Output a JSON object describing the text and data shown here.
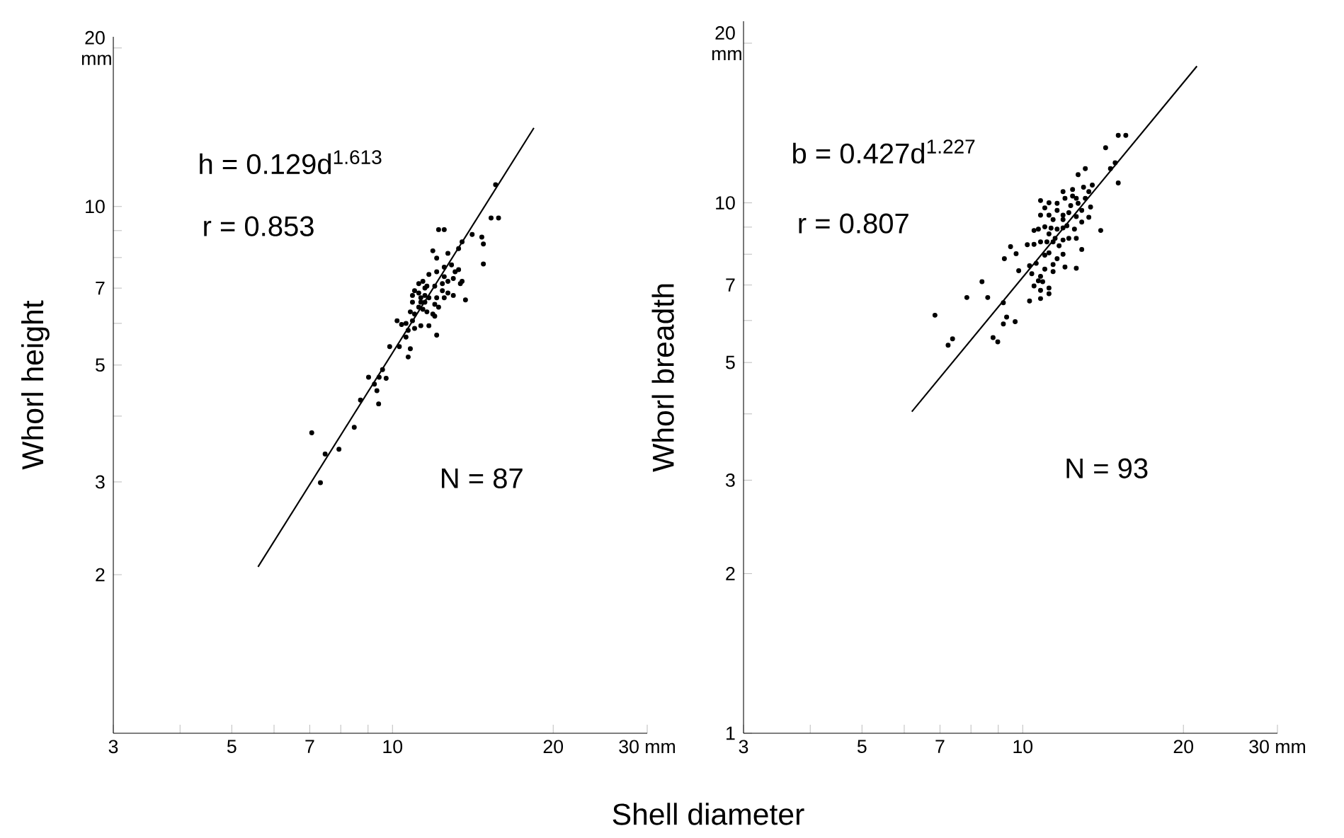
{
  "chart_data": [
    {
      "type": "scatter",
      "xlabel": "Shell diameter",
      "ylabel": "Whorl height",
      "log": "xy",
      "xlim": [
        3,
        30
      ],
      "ylim": [
        1,
        21
      ],
      "xticks": [
        3,
        {
          "value": 4,
          "label": null
        },
        5,
        {
          "value": 6,
          "label": null
        },
        7,
        {
          "value": 8,
          "label": null
        },
        {
          "value": 9,
          "label": null
        },
        10,
        20,
        {
          "value": 30,
          "label": "30 mm"
        }
      ],
      "yticks": [
        2,
        3,
        {
          "value": 4,
          "label": null
        },
        5,
        {
          "value": 6,
          "label": null
        },
        7,
        {
          "value": 8,
          "label": null
        },
        {
          "value": 9,
          "label": null
        },
        10,
        {
          "value": 20,
          "label": "20 mm"
        }
      ],
      "annotations": [
        "h = 0.129d$^{1.613}$",
        "r = 0.853",
        "N = 87"
      ],
      "series": [
        {
          "color": "#000000",
          "marker": "circle",
          "x": [
            7.06,
            7.48,
            7.94,
            8.48,
            8.71,
            7.33,
            9.02,
            9.44,
            9.25,
            9.73,
            9.35,
            9.42,
            9.58,
            9.88,
            10.3,
            10.7,
            10.8,
            10.6,
            10.2,
            10.4,
            10.6,
            10.9,
            11.3,
            12.1,
            10.8,
            11.0,
            11.2,
            11.4,
            10.9,
            11.2,
            11.5,
            11.7,
            12.0,
            12.5,
            12.7,
            13.0,
            13.7,
            13.4,
            13.1,
            12.7,
            12.4,
            12.0,
            11.6,
            11.4,
            11.2,
            11.0,
            11.7,
            12.1,
            12.5,
            12.9,
            13.3,
            12.1,
            11.9,
            12.7,
            13.3,
            13.5,
            14.1,
            14.7,
            14.8,
            14.8,
            13.5,
            12.2,
            12.5,
            15.3,
            15.8,
            15.6,
            10.9,
            11.3,
            11.5,
            11.6,
            11.9,
            12.0,
            12.4,
            13.0,
            12.5,
            11.5,
            11.3,
            10.7,
            11.7,
            11.0,
            12.1,
            12.2
          ],
          "values": [
            3.72,
            3.39,
            3.46,
            3.81,
            4.29,
            2.99,
            4.74,
            4.74,
            4.6,
            4.72,
            4.47,
            4.22,
            4.9,
            5.42,
            5.42,
            5.18,
            5.37,
            5.65,
            6.07,
            5.97,
            6.0,
            6.07,
            5.94,
            5.7,
            6.31,
            6.25,
            6.44,
            6.38,
            6.78,
            6.85,
            6.78,
            6.71,
            6.52,
            6.71,
            6.85,
            6.78,
            6.65,
            7.14,
            7.52,
            7.21,
            7.14,
            7.06,
            7.06,
            7.21,
            7.14,
            6.92,
            7.43,
            7.52,
            7.67,
            7.75,
            7.59,
            7.98,
            8.24,
            8.15,
            8.32,
            8.57,
            8.85,
            8.75,
            8.49,
            7.78,
            7.21,
            9.04,
            9.04,
            9.51,
            9.51,
            11.0,
            6.58,
            6.58,
            6.58,
            6.31,
            6.25,
            6.19,
            6.92,
            7.3,
            7.36,
            7.0,
            6.71,
            5.82,
            5.94,
            5.87,
            6.71,
            6.44
          ]
        },
        {
          "type": "line",
          "marker": "none",
          "color": "#000000",
          "x": [
            5.6,
            18.4
          ],
          "values": [
            2.07,
            14.1
          ]
        }
      ]
    },
    {
      "type": "scatter",
      "ylabel": "Whorl breadth",
      "log": "xy",
      "xlim": [
        3,
        30
      ],
      "ylim": [
        1,
        22
      ],
      "xticks": [
        3,
        {
          "value": 4,
          "label": null
        },
        5,
        {
          "value": 6,
          "label": null
        },
        7,
        {
          "value": 8,
          "label": null
        },
        {
          "value": 9,
          "label": null
        },
        10,
        20,
        {
          "value": 30,
          "label": "30 mm"
        }
      ],
      "yticks": [
        1,
        2,
        3,
        {
          "value": 4,
          "label": null
        },
        5,
        {
          "value": 6,
          "label": null
        },
        7,
        {
          "value": 8,
          "label": null
        },
        {
          "value": 9,
          "label": null
        },
        10,
        {
          "value": 20,
          "label": "20 mm"
        }
      ],
      "annotations": [
        "b = 0.427d$^{1.227}$",
        "r = 0.807",
        "N = 93"
      ],
      "series": [
        {
          "color": "#000000",
          "marker": "circle",
          "x": [
            6.85,
            7.25,
            7.39,
            7.86,
            8.39,
            8.6,
            8.8,
            8.98,
            9.2,
            9.2,
            9.33,
            9.68,
            9.24,
            9.49,
            9.72,
            9.83,
            10.3,
            10.3,
            10.5,
            10.8,
            10.8,
            11.2,
            11.2,
            10.9,
            10.8,
            11.0,
            11.4,
            11.6,
            11.9,
            12.0,
            12.6,
            12.9,
            12.2,
            11.9,
            11.4,
            11.1,
            10.8,
            10.5,
            10.2,
            10.5,
            10.7,
            11.0,
            11.3,
            11.6,
            11.9,
            12.5,
            12.9,
            13.3,
            14.0,
            11.2,
            10.8,
            11.2,
            10.8,
            11.6,
            11.9,
            12.2,
            12.6,
            11.6,
            12.0,
            12.4,
            12.6,
            12.7,
            13.1,
            13.3,
            13.0,
            12.4,
            11.9,
            12.7,
            13.1,
            13.5,
            13.4,
            11.9,
            11.4,
            14.3,
            15.1,
            15.6,
            14.6,
            14.9,
            15.1,
            11.5,
            11.7,
            11.2,
            11.4,
            10.6,
            10.4,
            12.3,
            12.9,
            11.0,
            12.1,
            12.6,
            11.2,
            10.7,
            11.0
          ],
          "values": [
            6.14,
            5.39,
            5.54,
            6.63,
            7.1,
            6.63,
            5.57,
            5.47,
            6.48,
            5.91,
            6.09,
            5.97,
            7.85,
            8.27,
            8.02,
            7.45,
            7.61,
            6.53,
            6.97,
            6.6,
            6.84,
            6.91,
            6.74,
            7.1,
            7.27,
            7.5,
            7.42,
            7.85,
            8.0,
            7.57,
            7.53,
            8.17,
            8.57,
            8.51,
            8.44,
            8.44,
            8.44,
            8.35,
            8.34,
            8.87,
            8.92,
            9.01,
            8.96,
            8.92,
            8.97,
            8.92,
            9.2,
            9.39,
            8.87,
            9.48,
            9.48,
            10.0,
            10.1,
            9.68,
            9.48,
            9.58,
            9.42,
            9.98,
            10.2,
            10.3,
            10.2,
            9.98,
            10.2,
            10.5,
            10.7,
            10.6,
            10.5,
            11.3,
            11.6,
            10.8,
            9.82,
            9.3,
            9.3,
            12.7,
            13.4,
            13.4,
            11.6,
            11.9,
            10.9,
            8.57,
            8.3,
            8.05,
            7.65,
            7.69,
            7.35,
            9.88,
            9.68,
            9.78,
            9.05,
            8.57,
            8.74,
            7.13,
            7.97
          ]
        },
        {
          "type": "line",
          "marker": "none",
          "color": "#000000",
          "x": [
            6.2,
            21.2
          ],
          "values": [
            4.04,
            18.1
          ]
        }
      ]
    }
  ]
}
